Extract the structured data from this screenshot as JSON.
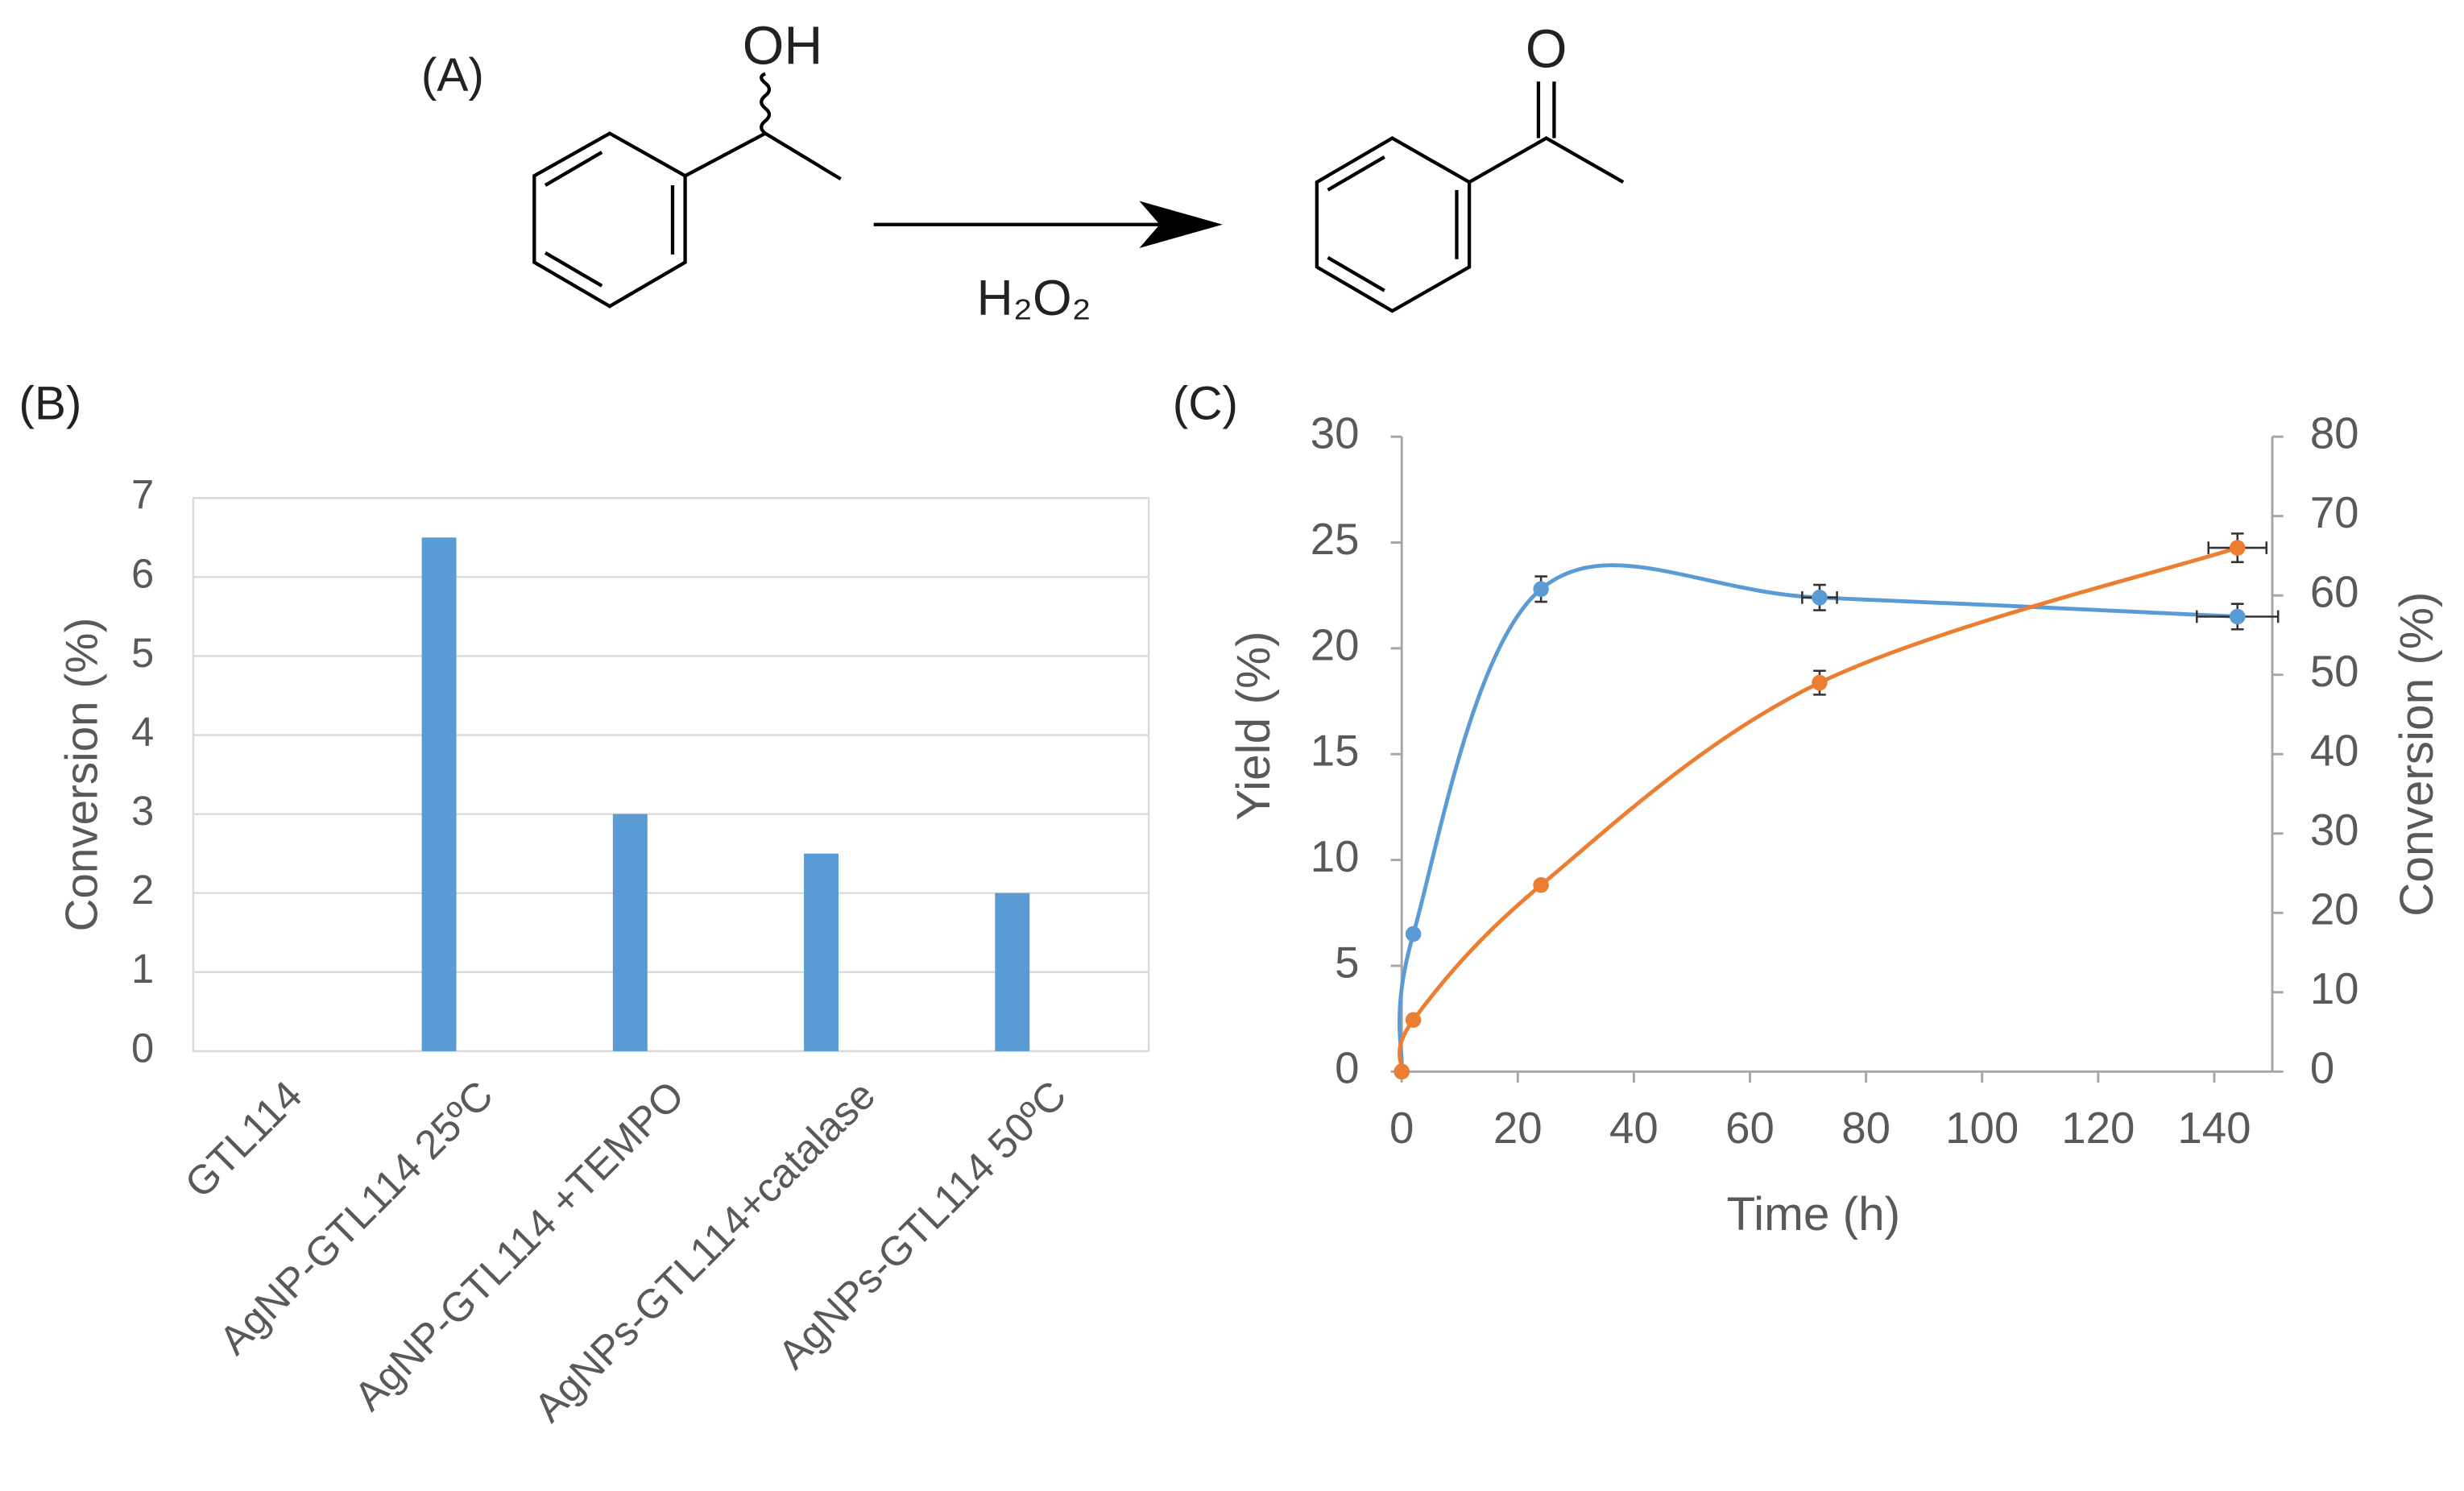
{
  "scheme": {
    "label": "(A)",
    "reactant_group": "OH",
    "product_group": "O",
    "reagent": "H₂O₂"
  },
  "chart_data": [
    {
      "type": "bar",
      "label": "(B)",
      "ylabel": "Conversion (%)",
      "categories": [
        "GTL114",
        "AgNP-GTL114 25ºC",
        "AgNP-GTL114 +TEMPO",
        "AgNPs-GTL114+catalase",
        "AgNPs-GTL114 50ºC"
      ],
      "values": [
        0,
        6.5,
        3,
        2.5,
        2
      ],
      "color": "#5b9bd5",
      "ylim": [
        0,
        7
      ],
      "yticks": [
        0,
        1,
        2,
        3,
        4,
        5,
        6,
        7
      ],
      "grid": true
    },
    {
      "type": "line",
      "label": "(C)",
      "xlabel": "Time (h)",
      "ylabel": "Yield (%)",
      "y2label": "Conversion (%)",
      "x": [
        0,
        2,
        24,
        72,
        144
      ],
      "series": [
        {
          "color": "#5b9bd5",
          "values": [
            0,
            6.5,
            22.8,
            22.4,
            21.5
          ],
          "errors": [
            null,
            null,
            0.6,
            0.6,
            0.6
          ],
          "xerrors": [
            null,
            null,
            null,
            3,
            7
          ]
        },
        {
          "color": "#ed7d31",
          "axis": "y2",
          "values": [
            0,
            6.5,
            23.5,
            49,
            66
          ],
          "errors": [
            null,
            null,
            null,
            1.5,
            1.8
          ],
          "xerrors": [
            null,
            null,
            null,
            null,
            5
          ]
        }
      ],
      "xlim": [
        0,
        150
      ],
      "xticks": [
        0,
        20,
        40,
        60,
        80,
        100,
        120,
        140
      ],
      "ylim": [
        0,
        30
      ],
      "yticks": [
        0,
        5,
        10,
        15,
        20,
        25,
        30
      ],
      "y2lim": [
        0,
        80
      ],
      "y2ticks": [
        0,
        10,
        20,
        30,
        40,
        50,
        60,
        70,
        80
      ],
      "smooth": true
    }
  ]
}
